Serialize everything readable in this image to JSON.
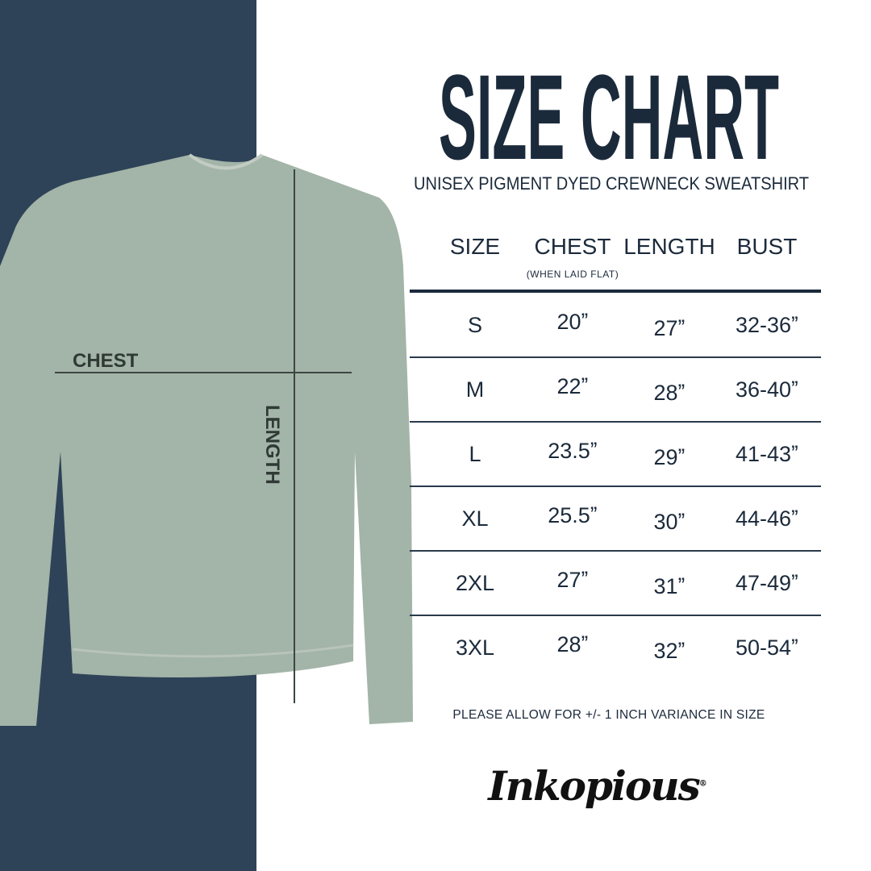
{
  "title": "SIZE CHART",
  "subtitle": "UNISEX PIGMENT DYED CREWNECK SWEATSHIRT",
  "headers": [
    "SIZE",
    "CHEST",
    "LENGTH",
    "BUST"
  ],
  "chest_note": "(WHEN LAID FLAT)",
  "rows": [
    [
      "S",
      "20ˮ",
      "27ˮ",
      "32-36ˮ"
    ],
    [
      "M",
      "22ˮ",
      "28ˮ",
      "36-40ˮ"
    ],
    [
      "L",
      "23.5ˮ",
      "29ˮ",
      "41-43ˮ"
    ],
    [
      "XL",
      "25.5ˮ",
      "30ˮ",
      "44-46ˮ"
    ],
    [
      "2XL",
      "27ˮ",
      "31ˮ",
      "47-49ˮ"
    ],
    [
      "3XL",
      "28ˮ",
      "32ˮ",
      "50-54ˮ"
    ]
  ],
  "diagram": {
    "chest_label": "CHEST",
    "length_label": "LENGTH"
  },
  "variance_note": "PLEASE ALLOW FOR +/- 1 INCH VARIANCE IN SIZE",
  "logo": "Inkopious",
  "colors": {
    "panel": "#2e4358",
    "text": "#1b2a3b",
    "garment": "#a3b4a8"
  }
}
